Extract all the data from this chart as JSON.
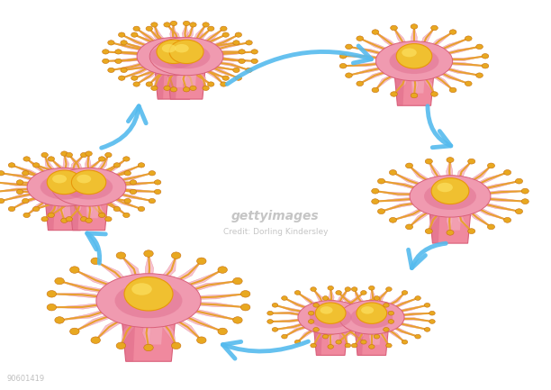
{
  "background_color": "#ffffff",
  "arrow_color": "#55bbee",
  "body_color": "#f0899e",
  "body_dark": "#d9607a",
  "body_mid": "#e87b95",
  "oral_disc_color": "#f5a8bb",
  "center_color": "#f0c030",
  "center_dark": "#e8980a",
  "tentacle_base_color": "#f0a0b5",
  "tentacle_tip_color": "#e8a820",
  "tentacle_line_color": "#e8a030",
  "figure_width": 6.12,
  "figure_height": 4.33,
  "dpi": 100
}
